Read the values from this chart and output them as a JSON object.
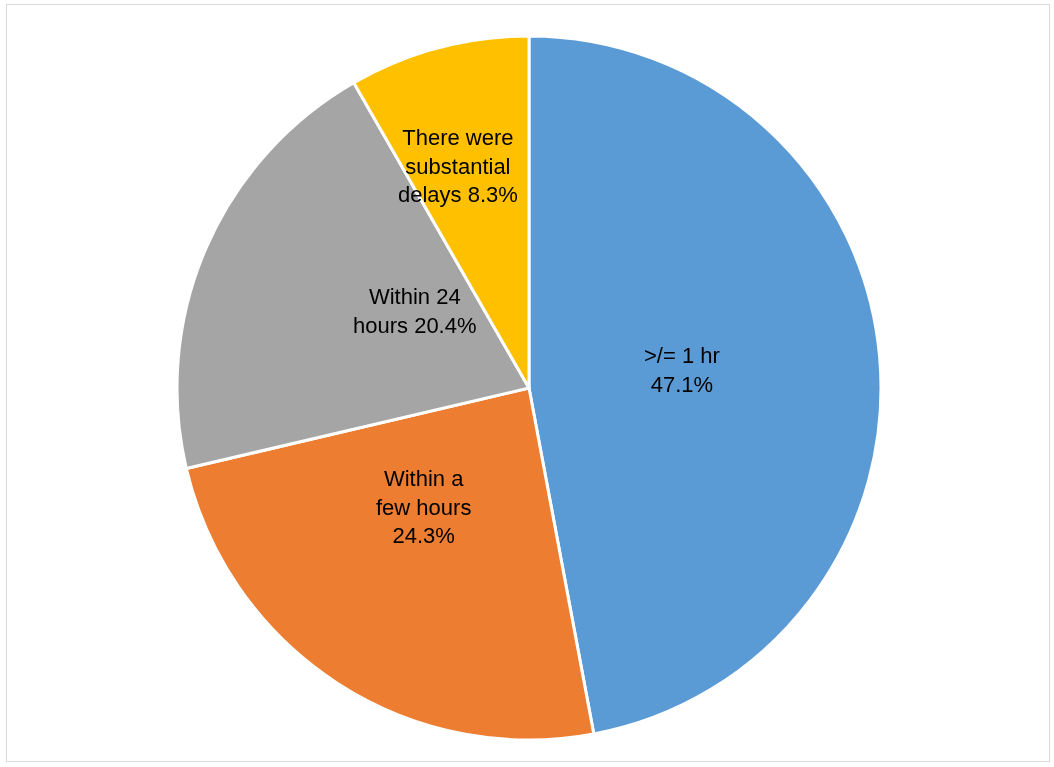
{
  "chart_data": {
    "type": "pie",
    "categories": [
      ">/= 1 hr",
      "Within a few hours",
      "Within 24 hours",
      "There were substantial delays"
    ],
    "values": [
      47.1,
      24.3,
      20.4,
      8.3
    ],
    "value_labels": [
      "47.1%",
      "24.3%",
      "20.4%",
      "8.3%"
    ],
    "colors": [
      "#5b9bd5",
      "#ed7d31",
      "#a5a5a5",
      "#ffc000"
    ],
    "legend": false
  }
}
